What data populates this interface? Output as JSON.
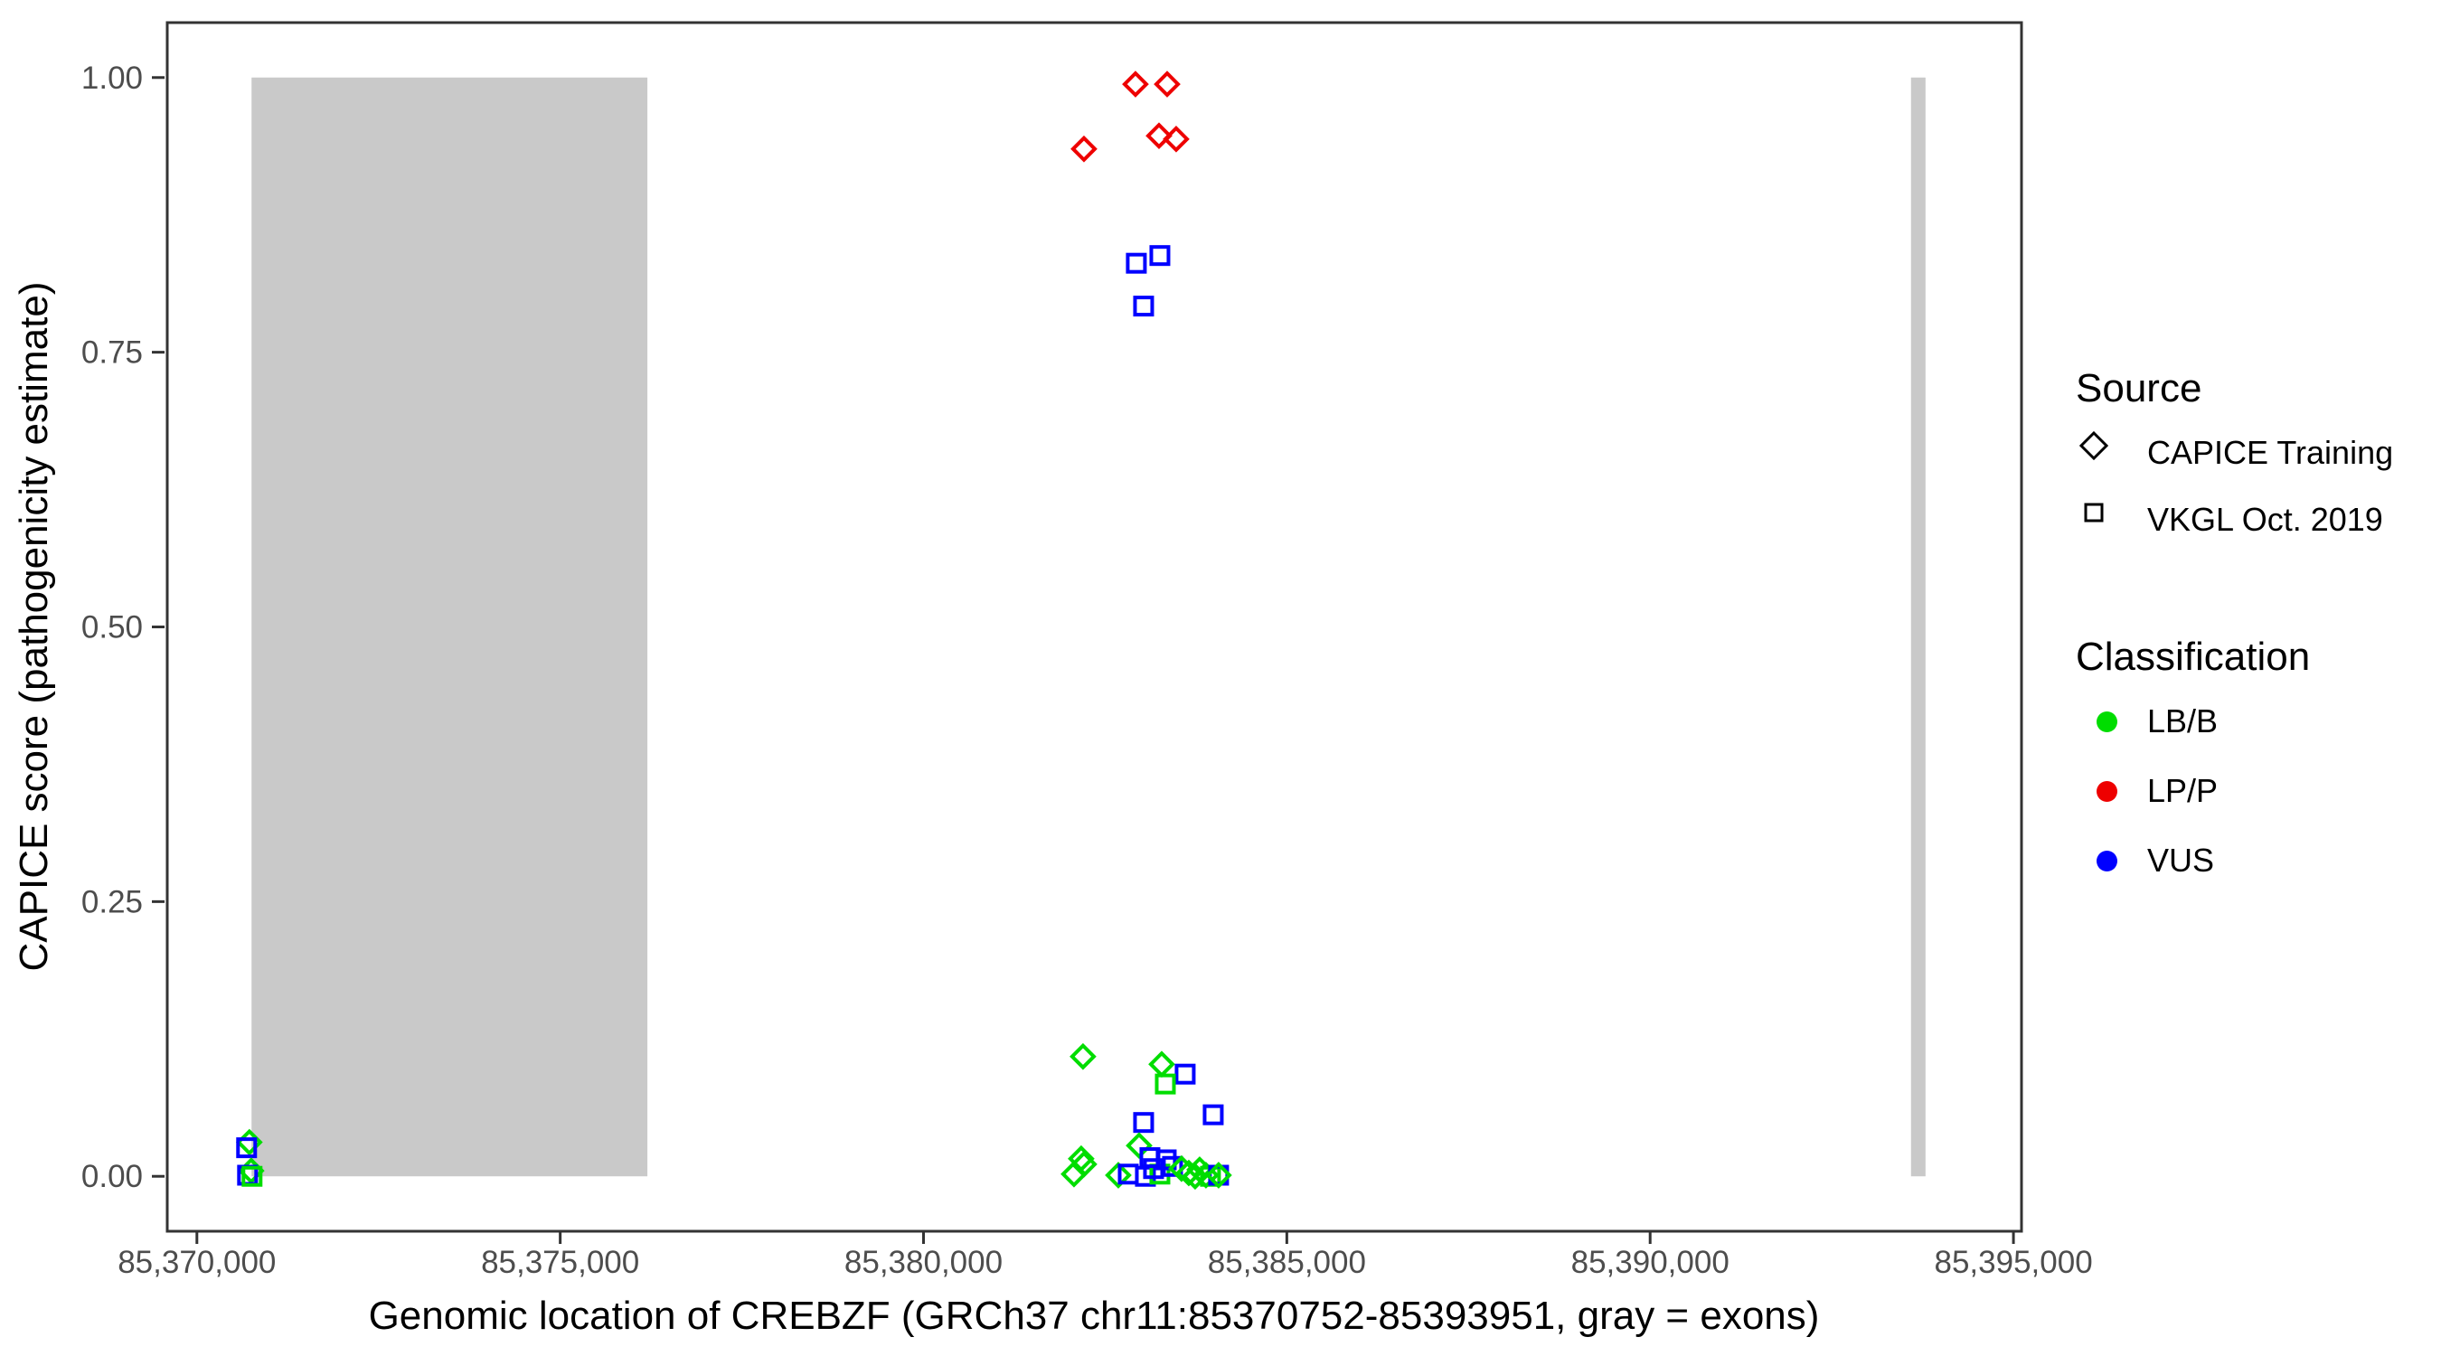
{
  "figure": {
    "background": "#FFFFFF",
    "panel_border_color": "#333333",
    "tick_color": "#333333",
    "tick_label_color": "#4D4D4D",
    "axis_title_color": "#000000",
    "exon_color": "#C9C9C9"
  },
  "chart_data": {
    "type": "scatter",
    "title": "",
    "xlabel": "Genomic location of CREBZF (GRCh37 chr11:85370752-85393951, gray = exons)",
    "ylabel": "CAPICE score (pathogenicity estimate)",
    "xlim": [
      85369592,
      85395111
    ],
    "ylim": [
      -0.05,
      1.05
    ],
    "grid": false,
    "legend_position": "right",
    "x_ticks": [
      {
        "value": 85370000,
        "label": "85,370,000"
      },
      {
        "value": 85375000,
        "label": "85,375,000"
      },
      {
        "value": 85380000,
        "label": "85,380,000"
      },
      {
        "value": 85385000,
        "label": "85,385,000"
      },
      {
        "value": 85390000,
        "label": "85,390,000"
      },
      {
        "value": 85395000,
        "label": "85,395,000"
      }
    ],
    "y_ticks": [
      {
        "value": 0.0,
        "label": "0.00"
      },
      {
        "value": 0.25,
        "label": "0.25"
      },
      {
        "value": 0.5,
        "label": "0.50"
      },
      {
        "value": 0.75,
        "label": "0.75"
      },
      {
        "value": 1.0,
        "label": "1.00"
      }
    ],
    "exons": [
      {
        "start": 85370752,
        "end": 85376200,
        "ymin": 0,
        "ymax": 1
      },
      {
        "start": 85393590,
        "end": 85393790,
        "ymin": 0,
        "ymax": 1
      }
    ],
    "sources": {
      "CAPICE Training": "diamond",
      "VKGL Oct. 2019": "square"
    },
    "classifications": {
      "LB/B": "#00DD00",
      "LP/P": "#EE0000",
      "VUS": "#0000FF"
    },
    "legend": {
      "source": {
        "title": "Source",
        "items": [
          {
            "label": "CAPICE Training",
            "shape": "diamond"
          },
          {
            "label": "VKGL Oct. 2019",
            "shape": "square"
          }
        ]
      },
      "classification": {
        "title": "Classification",
        "items": [
          {
            "label": "LB/B",
            "color": "#00DD00"
          },
          {
            "label": "LP/P",
            "color": "#EE0000"
          },
          {
            "label": "VUS",
            "color": "#0000FF"
          }
        ]
      }
    },
    "points": [
      {
        "x": 85370722,
        "y": 0.031,
        "source": "CAPICE Training",
        "classification": "LB/B"
      },
      {
        "x": 85370684,
        "y": 0.026,
        "source": "VKGL Oct. 2019",
        "classification": "VUS"
      },
      {
        "x": 85370747,
        "y": 0.005,
        "source": "CAPICE Training",
        "classification": "LB/B"
      },
      {
        "x": 85370697,
        "y": 0.001,
        "source": "VKGL Oct. 2019",
        "classification": "VUS"
      },
      {
        "x": 85370759,
        "y": 0.0,
        "source": "VKGL Oct. 2019",
        "classification": "LB/B"
      },
      {
        "x": 85382917,
        "y": 0.994,
        "source": "CAPICE Training",
        "classification": "LP/P"
      },
      {
        "x": 85383353,
        "y": 0.994,
        "source": "CAPICE Training",
        "classification": "LP/P"
      },
      {
        "x": 85383241,
        "y": 0.947,
        "source": "CAPICE Training",
        "classification": "LP/P"
      },
      {
        "x": 85383477,
        "y": 0.944,
        "source": "CAPICE Training",
        "classification": "LP/P"
      },
      {
        "x": 85382208,
        "y": 0.935,
        "source": "CAPICE Training",
        "classification": "LP/P"
      },
      {
        "x": 85383253,
        "y": 0.838,
        "source": "VKGL Oct. 2019",
        "classification": "VUS"
      },
      {
        "x": 85382929,
        "y": 0.831,
        "source": "VKGL Oct. 2019",
        "classification": "VUS"
      },
      {
        "x": 85383029,
        "y": 0.792,
        "source": "VKGL Oct. 2019",
        "classification": "VUS"
      },
      {
        "x": 85382195,
        "y": 0.109,
        "source": "CAPICE Training",
        "classification": "LB/B"
      },
      {
        "x": 85383278,
        "y": 0.102,
        "source": "CAPICE Training",
        "classification": "LB/B"
      },
      {
        "x": 85383601,
        "y": 0.093,
        "source": "VKGL Oct. 2019",
        "classification": "VUS"
      },
      {
        "x": 85383328,
        "y": 0.084,
        "source": "VKGL Oct. 2019",
        "classification": "LB/B"
      },
      {
        "x": 85383987,
        "y": 0.056,
        "source": "VKGL Oct. 2019",
        "classification": "VUS"
      },
      {
        "x": 85383029,
        "y": 0.049,
        "source": "VKGL Oct. 2019",
        "classification": "VUS"
      },
      {
        "x": 85382967,
        "y": 0.028,
        "source": "CAPICE Training",
        "classification": "LB/B"
      },
      {
        "x": 85382170,
        "y": 0.016,
        "source": "CAPICE Training",
        "classification": "LB/B"
      },
      {
        "x": 85382208,
        "y": 0.011,
        "source": "CAPICE Training",
        "classification": "LB/B"
      },
      {
        "x": 85382071,
        "y": 0.002,
        "source": "CAPICE Training",
        "classification": "LB/B"
      },
      {
        "x": 85382681,
        "y": 0.001,
        "source": "CAPICE Training",
        "classification": "LB/B"
      },
      {
        "x": 85382818,
        "y": 0.002,
        "source": "VKGL Oct. 2019",
        "classification": "VUS"
      },
      {
        "x": 85383054,
        "y": 0.0,
        "source": "VKGL Oct. 2019",
        "classification": "VUS"
      },
      {
        "x": 85383253,
        "y": 0.002,
        "source": "VKGL Oct. 2019",
        "classification": "LB/B"
      },
      {
        "x": 85383116,
        "y": 0.017,
        "source": "VKGL Oct. 2019",
        "classification": "VUS"
      },
      {
        "x": 85383166,
        "y": 0.007,
        "source": "VKGL Oct. 2019",
        "classification": "VUS"
      },
      {
        "x": 85383340,
        "y": 0.015,
        "source": "VKGL Oct. 2019",
        "classification": "VUS"
      },
      {
        "x": 85383427,
        "y": 0.009,
        "source": "VKGL Oct. 2019",
        "classification": "VUS"
      },
      {
        "x": 85383551,
        "y": 0.007,
        "source": "CAPICE Training",
        "classification": "LB/B"
      },
      {
        "x": 85383651,
        "y": 0.003,
        "source": "CAPICE Training",
        "classification": "LB/B"
      },
      {
        "x": 85383738,
        "y": 0.0,
        "source": "CAPICE Training",
        "classification": "LB/B"
      },
      {
        "x": 85383800,
        "y": 0.006,
        "source": "CAPICE Training",
        "classification": "LB/B"
      },
      {
        "x": 85383887,
        "y": 0.001,
        "source": "CAPICE Training",
        "classification": "LB/B"
      },
      {
        "x": 85383949,
        "y": 0.0,
        "source": "VKGL Oct. 2019",
        "classification": "LB/B"
      },
      {
        "x": 85384061,
        "y": 0.001,
        "source": "VKGL Oct. 2019",
        "classification": "VUS"
      },
      {
        "x": 85384061,
        "y": 0.001,
        "source": "CAPICE Training",
        "classification": "LB/B"
      }
    ]
  }
}
